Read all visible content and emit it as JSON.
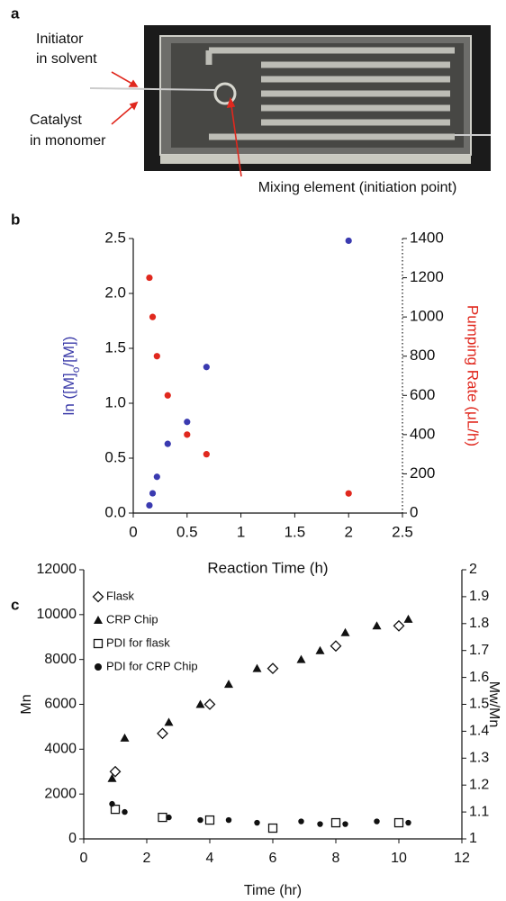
{
  "photo_panel": {
    "label": "a",
    "annotations": [
      "Initiator",
      "in solvent",
      "Catalyst",
      "in monomer",
      "Mixing element (initiation point)"
    ]
  },
  "chart_data": [
    {
      "type": "scatter",
      "panel_label": "b",
      "xlabel": "Reaction Time (h)",
      "ylabel": [
        "ln ([M]",
        "o",
        "/[M])"
      ],
      "ylabel_color": "#3a3aa8",
      "y2label": "Pumping Rate (μL/h)",
      "y2label_color": "#e0281e",
      "xlim": [
        0,
        2.5
      ],
      "xticks": [
        0,
        0.5,
        1,
        1.5,
        2,
        2.5
      ],
      "ylim": [
        0,
        2.5
      ],
      "yticks": [
        {
          "value": 0,
          "label": "0.0"
        },
        0.5,
        {
          "value": 1,
          "label": "1.0"
        },
        1.5,
        {
          "value": 2,
          "label": "2.0"
        },
        2.5
      ],
      "y2lim": [
        0,
        1400
      ],
      "y2ticks": [
        0,
        200,
        400,
        600,
        800,
        1000,
        1200,
        1400
      ],
      "series": [
        {
          "color": "#3a3ab0",
          "marker": "dot",
          "x": [
            0.15,
            0.18,
            0.22,
            0.32,
            0.5,
            0.68,
            2.0
          ],
          "values": [
            0.07,
            0.18,
            0.33,
            0.63,
            0.83,
            1.33,
            2.48
          ]
        },
        {
          "color": "#e0281e",
          "marker": "dot",
          "axis": "y2",
          "x": [
            0.15,
            0.18,
            0.22,
            0.32,
            0.5,
            0.68,
            2.0
          ],
          "values": [
            1200,
            1000,
            800,
            600,
            400,
            300,
            100
          ]
        }
      ]
    },
    {
      "type": "scatter",
      "panel_label": "c",
      "xlabel": "Time (hr)",
      "ylabel": [
        "Mn"
      ],
      "y2label": "Mw/Mn",
      "xlim": [
        0,
        12
      ],
      "xticks": [
        0,
        2,
        4,
        6,
        8,
        10,
        12
      ],
      "ylim": [
        0,
        12000
      ],
      "yticks": [
        0,
        2000,
        4000,
        6000,
        8000,
        10000,
        12000
      ],
      "y2lim": [
        1,
        2
      ],
      "y2ticks": [
        1,
        1.1,
        1.2,
        1.3,
        1.4,
        1.5,
        1.6,
        1.7,
        1.8,
        1.9,
        2
      ],
      "legend": "upper left",
      "series": [
        {
          "name": "Flask",
          "color": "#111111",
          "marker": "open-diamond",
          "x": [
            1.0,
            2.5,
            4.0,
            6.0,
            8.0,
            10.0
          ],
          "values": [
            3000,
            4700,
            6000,
            7600,
            8600,
            9500
          ]
        },
        {
          "name": "CRP Chip",
          "color": "#111111",
          "marker": "triangle",
          "x": [
            0.9,
            1.3,
            2.7,
            3.7,
            4.6,
            5.5,
            6.9,
            7.5,
            8.3,
            9.3,
            10.3
          ],
          "values": [
            2700,
            4500,
            5200,
            6000,
            6900,
            7600,
            8000,
            8400,
            9200,
            9500,
            9800
          ]
        },
        {
          "name": "PDI for flask",
          "color": "#111111",
          "marker": "open-square",
          "axis": "y2",
          "x": [
            1.0,
            2.5,
            4.0,
            6.0,
            8.0,
            10.0
          ],
          "values": [
            1.11,
            1.08,
            1.07,
            1.04,
            1.06,
            1.06
          ]
        },
        {
          "name": "PDI for CRP Chip",
          "color": "#111111",
          "marker": "dot",
          "axis": "y2",
          "x": [
            0.9,
            1.3,
            2.7,
            3.7,
            4.6,
            5.5,
            6.9,
            7.5,
            8.3,
            9.3,
            10.3
          ],
          "values": [
            1.13,
            1.1,
            1.08,
            1.07,
            1.07,
            1.06,
            1.065,
            1.055,
            1.055,
            1.065,
            1.06
          ]
        }
      ]
    }
  ]
}
